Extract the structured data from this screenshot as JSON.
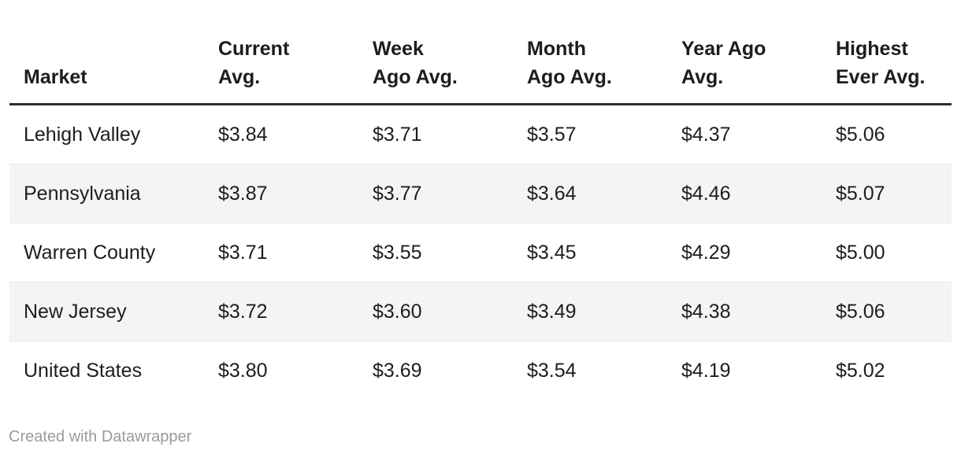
{
  "colors": {
    "background": "#ffffff",
    "text": "#1d1d1d",
    "header_border": "#2e2e2e",
    "row_stripe": "#f4f4f4",
    "row_border": "#e9e9e9",
    "footer_text": "#9b9b9b"
  },
  "table": {
    "columns": [
      {
        "label": "Market"
      },
      {
        "label": "Current\nAvg."
      },
      {
        "label": "Week\nAgo Avg."
      },
      {
        "label": "Month\nAgo Avg."
      },
      {
        "label": "Year Ago\nAvg."
      },
      {
        "label": "Highest\nEver Avg."
      }
    ],
    "rows": [
      {
        "market": "Lehigh Valley",
        "values": [
          "$3.84",
          "$3.71",
          "$3.57",
          "$4.37",
          "$5.06"
        ]
      },
      {
        "market": "Pennsylvania",
        "values": [
          "$3.87",
          "$3.77",
          "$3.64",
          "$4.46",
          "$5.07"
        ]
      },
      {
        "market": "Warren County",
        "values": [
          "$3.71",
          "$3.55",
          "$3.45",
          "$4.29",
          "$5.00"
        ]
      },
      {
        "market": "New Jersey",
        "values": [
          "$3.72",
          "$3.60",
          "$3.49",
          "$4.38",
          "$5.06"
        ]
      },
      {
        "market": "United States",
        "values": [
          "$3.80",
          "$3.69",
          "$3.54",
          "$4.19",
          "$5.02"
        ]
      }
    ]
  },
  "footer": {
    "credit": "Created with Datawrapper"
  },
  "chart_data": {
    "type": "table",
    "title": "",
    "columns": [
      "Market",
      "Current Avg.",
      "Week Ago Avg.",
      "Month Ago Avg.",
      "Year Ago Avg.",
      "Highest Ever Avg."
    ],
    "rows": [
      [
        "Lehigh Valley",
        3.84,
        3.71,
        3.57,
        4.37,
        5.06
      ],
      [
        "Pennsylvania",
        3.87,
        3.77,
        3.64,
        4.46,
        5.07
      ],
      [
        "Warren County",
        3.71,
        3.55,
        3.45,
        4.29,
        5.0
      ],
      [
        "New Jersey",
        3.72,
        3.6,
        3.49,
        4.38,
        5.06
      ],
      [
        "United States",
        3.8,
        3.69,
        3.54,
        4.19,
        5.02
      ]
    ]
  }
}
